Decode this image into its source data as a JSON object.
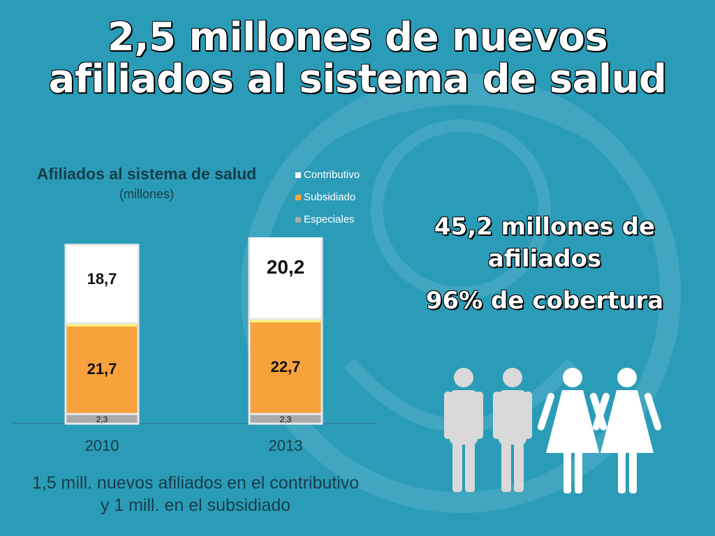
{
  "slide": {
    "title_line1": "2,5 millones de nuevos",
    "title_line2": "afiliados al sistema de salud",
    "headline_line1": "45,2 millones de",
    "headline_line2": "afiliados",
    "coverage": "96% de cobertura",
    "footnote_line1": "1,5 mill. nuevos afiliados en el contributivo",
    "footnote_line2": "y  1 mill. en el subsidiado",
    "people_icon": "people-pictogram-icon"
  },
  "chart_data": {
    "type": "bar",
    "stacked": true,
    "title": "Afiliados al sistema de salud",
    "subtitle": "(millones)",
    "categories": [
      "2010",
      "2013"
    ],
    "series": [
      {
        "name": "Especiales",
        "values": [
          2.3,
          2.3
        ],
        "labels": [
          "2,3",
          "2,3"
        ],
        "color": "#a9a9a9"
      },
      {
        "name": "Subsidiado",
        "values": [
          21.7,
          22.7
        ],
        "labels": [
          "21,7",
          "22,7"
        ],
        "color": "#f7a23c"
      },
      {
        "name": "Contributivo",
        "values": [
          18.7,
          20.2
        ],
        "labels": [
          "18,7",
          "20,2"
        ],
        "color": "#ffffff"
      }
    ],
    "legend_order": [
      "Contributivo",
      "Subsidiado",
      "Especiales"
    ],
    "legend_position": "top-right",
    "ylim": [
      0,
      45
    ],
    "grid": false
  }
}
